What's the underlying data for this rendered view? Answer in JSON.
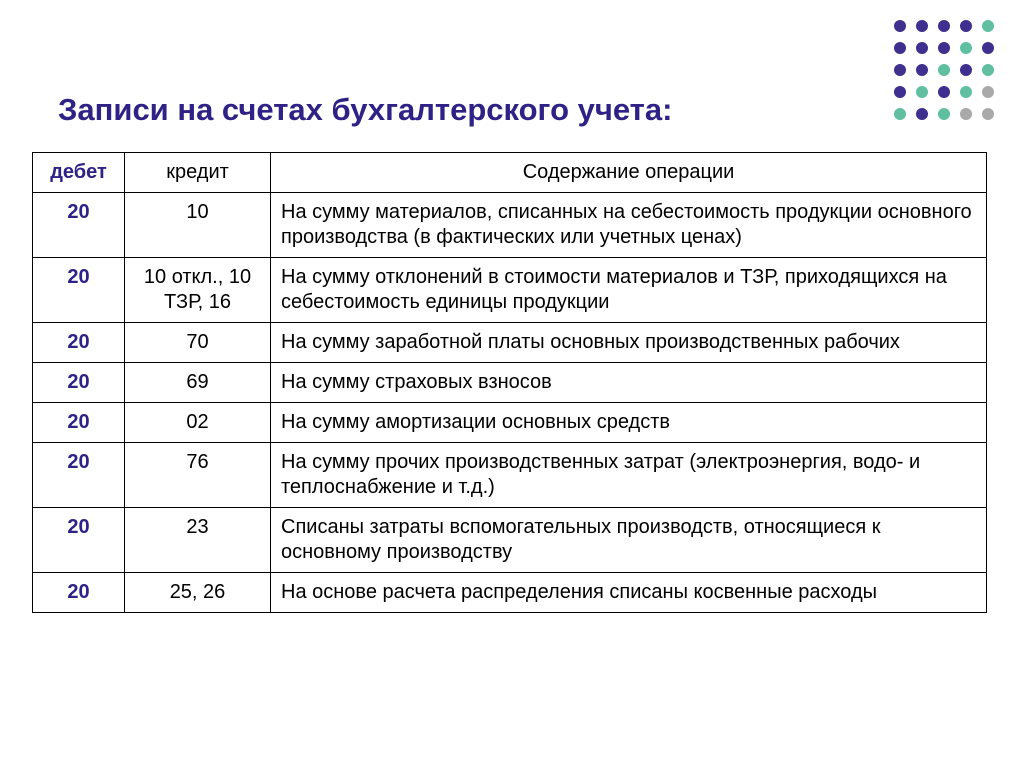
{
  "title": "Записи на счетах бухгалтерского учета:",
  "dots": {
    "cols": 5,
    "rows": 5,
    "r": 6,
    "gap": 22,
    "colors": [
      [
        "#3f2f8f",
        "#3f2f8f",
        "#3f2f8f",
        "#3f2f8f",
        "#5fbfa0"
      ],
      [
        "#3f2f8f",
        "#3f2f8f",
        "#3f2f8f",
        "#5fbfa0",
        "#3f2f8f"
      ],
      [
        "#3f2f8f",
        "#3f2f8f",
        "#5fbfa0",
        "#3f2f8f",
        "#5fbfa0"
      ],
      [
        "#3f2f8f",
        "#5fbfa0",
        "#3f2f8f",
        "#5fbfa0",
        "#a9a9a9"
      ],
      [
        "#5fbfa0",
        "#3f2f8f",
        "#5fbfa0",
        "#a9a9a9",
        "#a9a9a9"
      ]
    ]
  },
  "table": {
    "headers": {
      "debit": "дебет",
      "credit": "кредит",
      "desc": "Содержание операции"
    },
    "rows": [
      {
        "debit": "20",
        "credit": "10",
        "desc": "На сумму материалов, списанных на себестоимость продукции основного производства (в фактических или учетных ценах)"
      },
      {
        "debit": "20",
        "credit": "10 откл., 10 ТЗР, 16",
        "desc": "На сумму отклонений в стоимости материалов и ТЗР, приходящихся на себестоимость единицы продукции"
      },
      {
        "debit": "20",
        "credit": "70",
        "desc": "На сумму заработной платы основных производственных рабочих"
      },
      {
        "debit": "20",
        "credit": "69",
        "desc": "На сумму страховых взносов"
      },
      {
        "debit": "20",
        "credit": "02",
        "desc": "На сумму амортизации основных средств"
      },
      {
        "debit": "20",
        "credit": "76",
        "desc": "На сумму прочих производственных затрат (электроэнергия, водо- и теплоснабжение и т.д.)"
      },
      {
        "debit": "20",
        "credit": "23",
        "desc": "Списаны затраты вспомогательных производств, относящиеся к основному производству"
      },
      {
        "debit": "20",
        "credit": "25, 26",
        "desc": "На основе расчета распределения списаны косвенные расходы"
      }
    ]
  }
}
